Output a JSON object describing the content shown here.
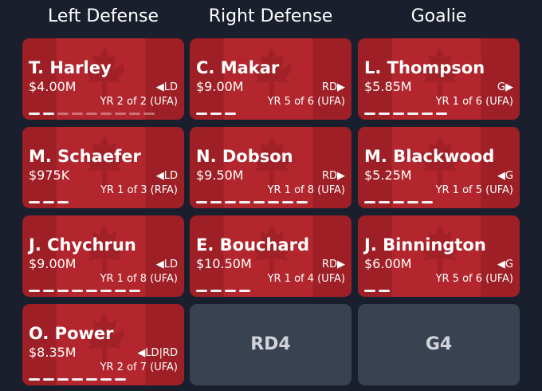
{
  "columns": [
    {
      "title": "Left Defense",
      "cards": [
        {
          "name": "T. Harley",
          "salary": "$4.00M",
          "position": "◀LD",
          "contract": "YR 2 of 2 (UFA)",
          "bars": 2,
          "bars_dim": 7
        },
        {
          "name": "M. Schaefer",
          "salary": "$975K",
          "position": "◀LD",
          "contract": "YR 1 of 3 (RFA)",
          "bars": 3
        },
        {
          "name": "J. Chychrun",
          "salary": "$9.00M",
          "position": "◀LD",
          "contract": "YR 1 of 8 (UFA)",
          "bars": 8
        },
        {
          "name": "O. Power",
          "salary": "$8.35M",
          "position": "◀LD|RD",
          "contract": "YR 2 of 7 (UFA)",
          "bars": 7
        }
      ]
    },
    {
      "title": "Right Defense",
      "cards": [
        {
          "name": "C. Makar",
          "salary": "$9.00M",
          "position": "RD▶",
          "contract": "YR 5 of 6 (UFA)",
          "bars": 3
        },
        {
          "name": "N. Dobson",
          "salary": "$9.50M",
          "position": "RD▶",
          "contract": "YR 1 of 8 (UFA)",
          "bars": 8
        },
        {
          "name": "E. Bouchard",
          "salary": "$10.50M",
          "position": "RD▶",
          "contract": "YR 1 of 4 (UFA)",
          "bars": 4
        },
        {
          "label": "RD4"
        }
      ]
    },
    {
      "title": "Goalie",
      "cards": [
        {
          "name": "L. Thompson",
          "salary": "$5.85M",
          "position": "G▶",
          "contract": "YR 1 of 6 (UFA)",
          "bars": 6
        },
        {
          "name": "M. Blackwood",
          "salary": "$5.25M",
          "position": "◀G",
          "contract": "YR 1 of 5 (UFA)",
          "bars": 5
        },
        {
          "name": "J. Binnington",
          "salary": "$6.00M",
          "position": "◀G",
          "contract": "YR 5 of 6 (UFA)",
          "bars": 2
        },
        {
          "label": "G4"
        }
      ]
    }
  ]
}
